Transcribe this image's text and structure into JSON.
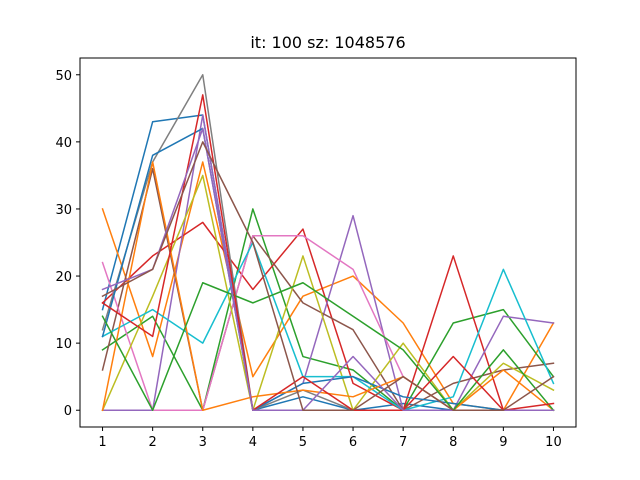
{
  "chart_data": {
    "type": "line",
    "title": "it: 100 sz: 1048576",
    "xlabel": "",
    "ylabel": "",
    "x": [
      1,
      2,
      3,
      4,
      5,
      6,
      7,
      8,
      9,
      10
    ],
    "xticks": [
      "1",
      "2",
      "3",
      "4",
      "5",
      "6",
      "7",
      "8",
      "9",
      "10"
    ],
    "yticks": [
      "0",
      "10",
      "20",
      "30",
      "40",
      "50"
    ],
    "xlim": [
      0.55,
      10.45
    ],
    "ylim": [
      -2.5,
      52.5
    ],
    "grid": false,
    "legend": "none",
    "series": [
      {
        "color": "#1f77b4",
        "values": [
          15,
          43,
          44,
          0,
          2,
          0,
          1,
          0,
          0,
          0
        ]
      },
      {
        "color": "#ff7f0e",
        "values": [
          30,
          8,
          37,
          5,
          17,
          20,
          13,
          1,
          0,
          13
        ]
      },
      {
        "color": "#2ca02c",
        "values": [
          9,
          14,
          0,
          30,
          8,
          6,
          0,
          13,
          15,
          5
        ]
      },
      {
        "color": "#d62728",
        "values": [
          16,
          23,
          28,
          18,
          27,
          4,
          0,
          23,
          0,
          0
        ]
      },
      {
        "color": "#9467bd",
        "values": [
          0,
          0,
          44,
          0,
          4,
          29,
          0,
          0,
          14,
          13
        ]
      },
      {
        "color": "#8c564b",
        "values": [
          6,
          36,
          0,
          26,
          16,
          12,
          0,
          4,
          6,
          7
        ]
      },
      {
        "color": "#e377c2",
        "values": [
          22,
          0,
          0,
          26,
          26,
          21,
          5,
          0,
          0,
          0
        ]
      },
      {
        "color": "#7f7f7f",
        "values": [
          12,
          37,
          50,
          0,
          3,
          0,
          0,
          0,
          0,
          0
        ]
      },
      {
        "color": "#bcbd22",
        "values": [
          0,
          17,
          35,
          0,
          23,
          0,
          10,
          0,
          7,
          3
        ]
      },
      {
        "color": "#17becf",
        "values": [
          11,
          15,
          10,
          25,
          5,
          5,
          0,
          2,
          21,
          4
        ]
      },
      {
        "color": "#1f77b4",
        "values": [
          11,
          38,
          42,
          0,
          4,
          5,
          2,
          1,
          0,
          0
        ]
      },
      {
        "color": "#ff7f0e",
        "values": [
          0,
          37,
          0,
          2,
          3,
          2,
          5,
          0,
          6,
          0
        ]
      },
      {
        "color": "#2ca02c",
        "values": [
          14,
          0,
          19,
          16,
          19,
          14,
          9,
          0,
          9,
          0
        ]
      },
      {
        "color": "#d62728",
        "values": [
          16,
          11,
          47,
          0,
          5,
          0,
          0,
          8,
          0,
          1
        ]
      },
      {
        "color": "#9467bd",
        "values": [
          18,
          21,
          42,
          0,
          0,
          8,
          0,
          0,
          0,
          0
        ]
      },
      {
        "color": "#8c564b",
        "values": [
          17,
          21,
          40,
          25,
          0,
          0,
          5,
          0,
          0,
          5
        ]
      }
    ]
  }
}
